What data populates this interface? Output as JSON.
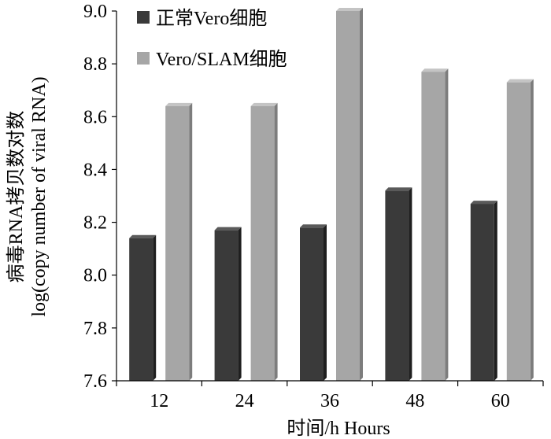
{
  "chart_data": {
    "type": "bar",
    "categories": [
      "12",
      "24",
      "36",
      "48",
      "60"
    ],
    "series": [
      {
        "name": "正常Vero细胞",
        "color": "#3a3a3a",
        "values": [
          8.14,
          8.17,
          8.18,
          8.32,
          8.27
        ]
      },
      {
        "name": "Vero/SLAM细胞",
        "color": "#a6a6a6",
        "values": [
          8.64,
          8.64,
          9.0,
          8.77,
          8.73
        ]
      }
    ],
    "ylim": [
      7.6,
      9.0
    ],
    "yticks": [
      "7.6",
      "7.8",
      "8.0",
      "8.2",
      "8.4",
      "8.6",
      "8.8",
      "9.0"
    ],
    "xlabel": "时间/h Hours",
    "ylabel_line1": "病毒RNA拷贝数对数",
    "ylabel_line2": "log(copy number of viral RNA)",
    "legend_position": "top-left",
    "grid": false
  }
}
